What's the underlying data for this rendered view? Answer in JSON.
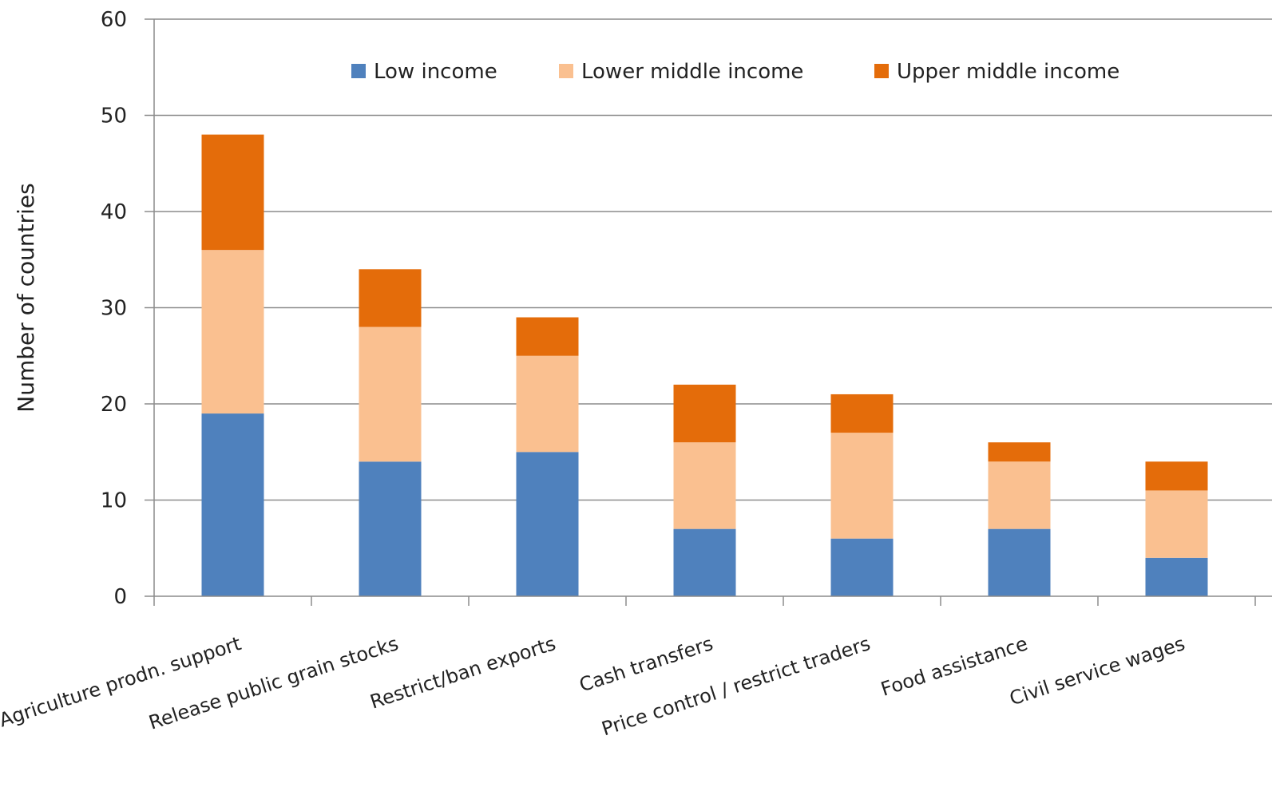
{
  "chart_data": {
    "type": "bar",
    "stacked": true,
    "categories": [
      "Agriculture prodn. support",
      "Release public grain stocks",
      "Restrict/ban exports",
      "Cash transfers",
      "Price control / restrict traders",
      "Food assistance",
      "Civil service wages"
    ],
    "series": [
      {
        "name": "Low income",
        "color": "#4F81BD",
        "values": [
          19,
          14,
          15,
          7,
          6,
          7,
          4
        ]
      },
      {
        "name": "Lower middle income",
        "color": "#FAC090",
        "values": [
          17,
          14,
          10,
          9,
          11,
          7,
          7
        ]
      },
      {
        "name": "Upper middle income",
        "color": "#E46C0A",
        "values": [
          12,
          6,
          4,
          6,
          4,
          2,
          3
        ]
      }
    ],
    "title": "",
    "xlabel": "",
    "ylabel": "Number of countries",
    "ylim": [
      0,
      60
    ],
    "yticks": [
      0,
      10,
      20,
      30,
      40,
      50,
      60
    ],
    "grid": true,
    "legend_position": "top"
  }
}
